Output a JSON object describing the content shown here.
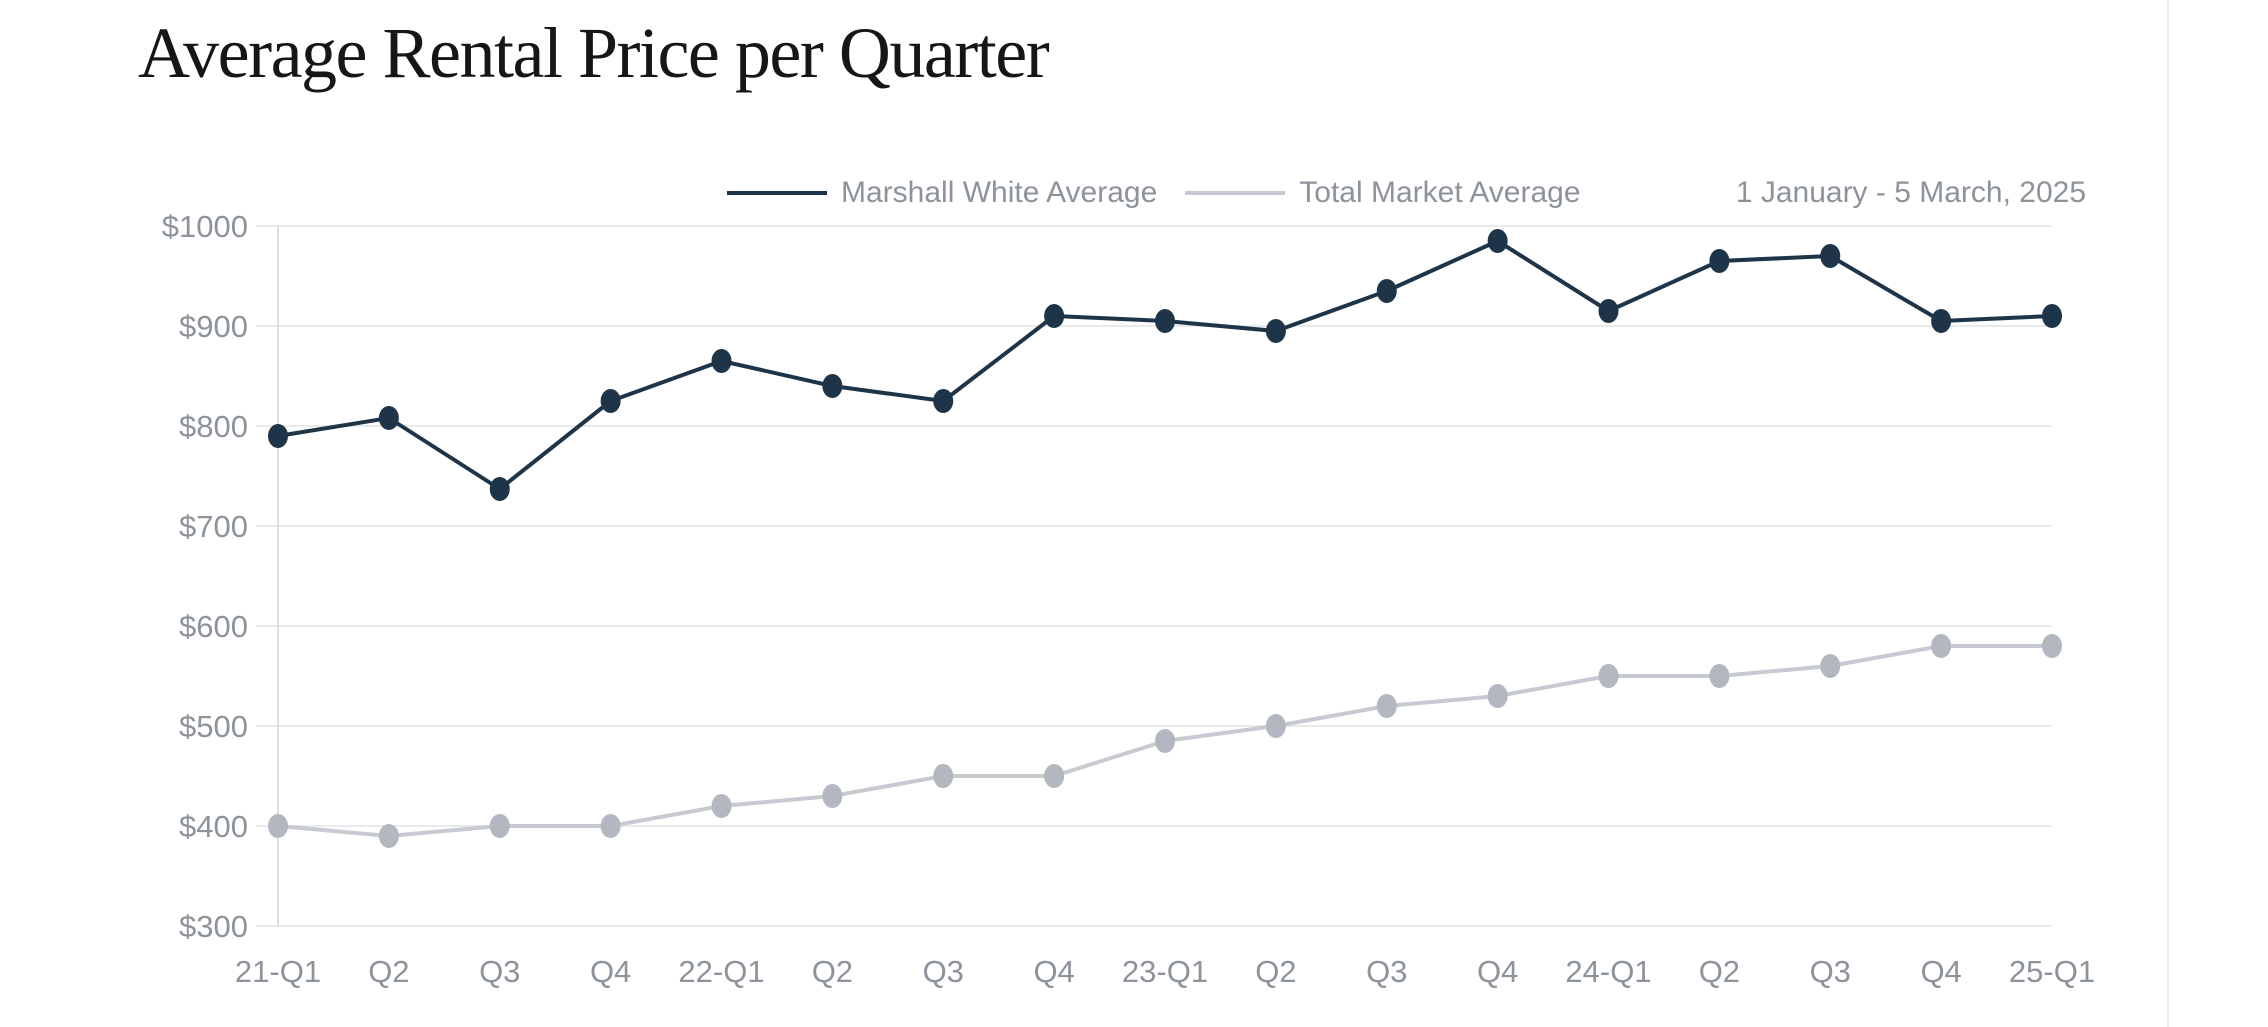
{
  "title": "Average Rental Price per Quarter",
  "date_range": "1 January - 5 March, 2025",
  "legend": {
    "items": [
      {
        "label": "Marshall White Average",
        "color": "#1e3549"
      },
      {
        "label": "Total Market Average",
        "color": "#c7cbd1"
      }
    ]
  },
  "colors": {
    "navy": "#1e3549",
    "gray_line": "#c7cbd1",
    "gray_point": "#b2b7c0",
    "text_gray": "#8d939b",
    "gridline": "#e9eaeb",
    "axis_line": "#dcdee1",
    "title_color": "#161616",
    "divider": "#ececee",
    "background": "#ffffff"
  },
  "chart_data": {
    "type": "line",
    "title": "Average Rental Price per Quarter",
    "subtitle": "1 January - 5 March, 2025",
    "categories": [
      "21-Q1",
      "Q2",
      "Q3",
      "Q4",
      "22-Q1",
      "Q2",
      "Q3",
      "Q4",
      "23-Q1",
      "Q2",
      "Q3",
      "Q4",
      "24-Q1",
      "Q2",
      "Q3",
      "Q4",
      "25-Q1"
    ],
    "series": [
      {
        "name": "Marshall White Average",
        "values": [
          790,
          808,
          737,
          825,
          865,
          840,
          825,
          910,
          905,
          895,
          935,
          985,
          915,
          965,
          970,
          905,
          910
        ],
        "line_color": "#1e3549",
        "point_color": "#1e3549"
      },
      {
        "name": "Total Market Average",
        "values": [
          400,
          390,
          400,
          400,
          420,
          430,
          450,
          450,
          485,
          500,
          520,
          530,
          550,
          550,
          560,
          580,
          580
        ],
        "line_color": "#c7cbd1",
        "point_color": "#b2b7c0"
      }
    ],
    "yticks": [
      {
        "label": "$1000",
        "value": 1000
      },
      {
        "label": "$900",
        "value": 900
      },
      {
        "label": "$800",
        "value": 800
      },
      {
        "label": "$700",
        "value": 700
      },
      {
        "label": "$600",
        "value": 600
      },
      {
        "label": "$500",
        "value": 500
      },
      {
        "label": "$400",
        "value": 400
      },
      {
        "label": "$300",
        "value": 300
      }
    ],
    "ylim": [
      300,
      1000
    ],
    "xlabel": "",
    "ylabel": "",
    "grid": "horizontal",
    "legend_position": "top-center"
  }
}
